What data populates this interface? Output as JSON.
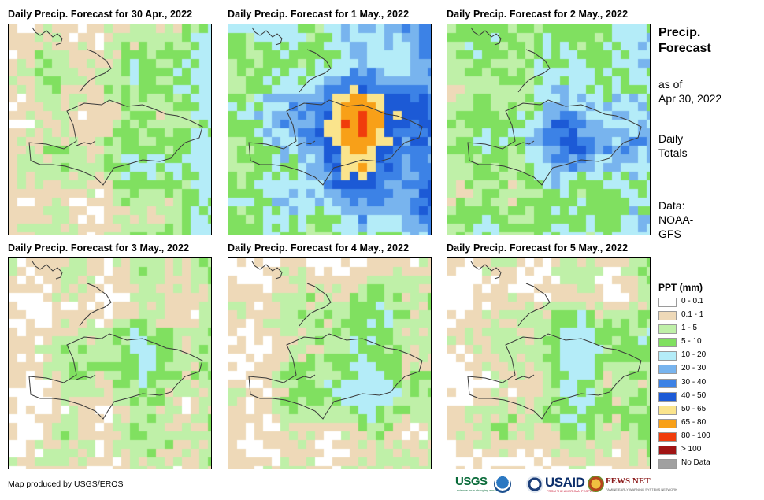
{
  "panels": [
    {
      "title": "Daily Precip. Forecast for 30 Apr., 2022",
      "seed": 11,
      "intensity": 0.9,
      "wet_east": 1.6,
      "wet_center": 0.3
    },
    {
      "title": "Daily Precip. Forecast for 1 May., 2022",
      "seed": 23,
      "intensity": 2.4,
      "wet_east": 1.4,
      "wet_center": 1.5
    },
    {
      "title": "Daily Precip. Forecast for 2 May., 2022",
      "seed": 37,
      "intensity": 1.7,
      "wet_east": 0.8,
      "wet_center": 0.9
    },
    {
      "title": "Daily Precip. Forecast for 3 May., 2022",
      "seed": 41,
      "intensity": 0.45,
      "wet_east": 0.6,
      "wet_center": 0.6
    },
    {
      "title": "Daily Precip. Forecast for 4 May., 2022",
      "seed": 53,
      "intensity": 0.55,
      "wet_east": 0.6,
      "wet_center": 0.8
    },
    {
      "title": "Daily Precip. Forecast for 5 May., 2022",
      "seed": 67,
      "intensity": 0.5,
      "wet_east": 0.6,
      "wet_center": 0.8
    }
  ],
  "side": {
    "title_line1": "Precip.",
    "title_line2": "Forecast",
    "asof_line1": "as of",
    "asof_line2": "Apr 30, 2022",
    "totals_line1": "Daily",
    "totals_line2": "Totals",
    "data_line1": "Data:",
    "data_line2": "NOAA-",
    "data_line3": "GFS"
  },
  "legend": {
    "title": "PPT (mm)",
    "items": [
      {
        "label": "0 - 0.1",
        "color": "#ffffff"
      },
      {
        "label": "0.1 - 1",
        "color": "#eed9b8"
      },
      {
        "label": "1 - 5",
        "color": "#bff0a8"
      },
      {
        "label": "5 - 10",
        "color": "#80e060"
      },
      {
        "label": "10 - 20",
        "color": "#b4ecf8"
      },
      {
        "label": "20 - 30",
        "color": "#78b4ee"
      },
      {
        "label": "30 - 40",
        "color": "#3c82e6"
      },
      {
        "label": "40 - 50",
        "color": "#1c5ad6"
      },
      {
        "label": "50 - 65",
        "color": "#fae48c"
      },
      {
        "label": "65 - 80",
        "color": "#f8a018"
      },
      {
        "label": "80 - 100",
        "color": "#f03c0c"
      },
      {
        "label": "> 100",
        "color": "#a01414"
      },
      {
        "label": "No Data",
        "color": "#a0a0a0"
      }
    ]
  },
  "credit": "Map produced by USGS/EROS",
  "logos": {
    "usgs": "USGS",
    "usgs_tagline": "science for a changing world",
    "usaid": "USAID",
    "usaid_tagline": "FROM THE AMERICAN PEOPLE",
    "fews": "FEWS NET",
    "fews_tagline": "FAMINE EARLY WARNING SYSTEMS NETWORK"
  }
}
